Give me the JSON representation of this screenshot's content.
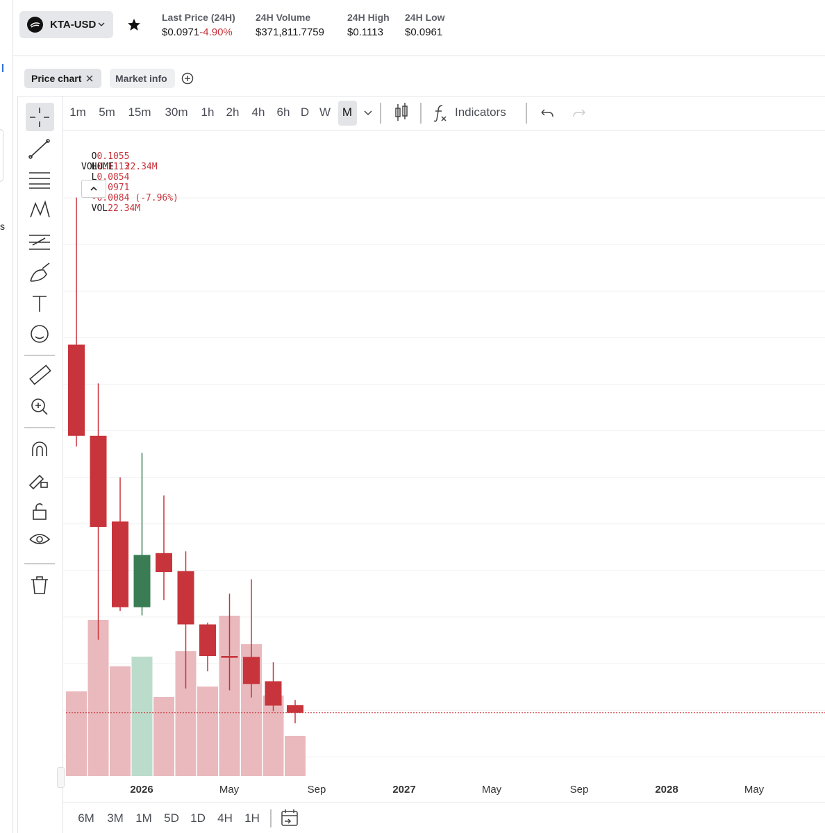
{
  "sidebar_fragment": "s",
  "header": {
    "pair": "KTA-USD",
    "stats": [
      {
        "label": "Last Price (24H)",
        "value": "$0.0971",
        "change": "-4.90%"
      },
      {
        "label": "24H Volume",
        "value": "$371,811.7759"
      },
      {
        "label": "24H High",
        "value": "$0.1113"
      },
      {
        "label": "24H Low",
        "value": "$0.0961"
      }
    ]
  },
  "tabs": [
    "Price chart",
    "Market info"
  ],
  "intervals": [
    "1m",
    "5m",
    "15m",
    "30m",
    "1h",
    "2h",
    "4h",
    "6h",
    "D",
    "W",
    "M"
  ],
  "active_interval": 10,
  "indicators_label": "Indicators",
  "ranges": [
    "6M",
    "3M",
    "1M",
    "5D",
    "1D",
    "4H",
    "1H"
  ],
  "chart_data": {
    "type": "candlestick",
    "legend": {
      "o_key": "O",
      "o": "0.1055",
      "h_key": "H",
      "h": "0.1113",
      "l_key": "L",
      "l": "0.0854",
      "c_key": "C",
      "c": "0.0971",
      "change": "-0.0084 (-7.96%)",
      "vol_key": "VOL",
      "vol": "22.34M"
    },
    "volume_label": "VOLUME",
    "open": [
      0.505,
      0.404,
      0.309,
      0.214,
      0.274,
      0.254,
      0.195,
      0.16,
      0.159,
      0.132,
      0.1055
    ],
    "high": [
      0.668,
      0.462,
      0.358,
      0.385,
      0.338,
      0.276,
      0.197,
      0.229,
      0.245,
      0.153,
      0.1113
    ],
    "low": [
      0.392,
      0.178,
      0.21,
      0.205,
      0.222,
      0.124,
      0.143,
      0.122,
      0.114,
      0.099,
      0.0854
    ],
    "close": [
      0.404,
      0.303,
      0.214,
      0.272,
      0.253,
      0.195,
      0.16,
      0.158,
      0.129,
      0.105,
      0.0971
    ],
    "volume": [
      47.0,
      86.7,
      60.9,
      66.3,
      43.9,
      69.3,
      49.7,
      89.0,
      73.2,
      44.7,
      22.34
    ],
    "xticks": [
      "2026",
      "May",
      "Sep",
      "2027",
      "May",
      "Sep",
      "2028",
      "May"
    ],
    "up_color": "#3a7d55",
    "down_color": "#c8343b",
    "up_volume_color": "#bcdccb",
    "down_volume_color": "#e9b9bd"
  }
}
